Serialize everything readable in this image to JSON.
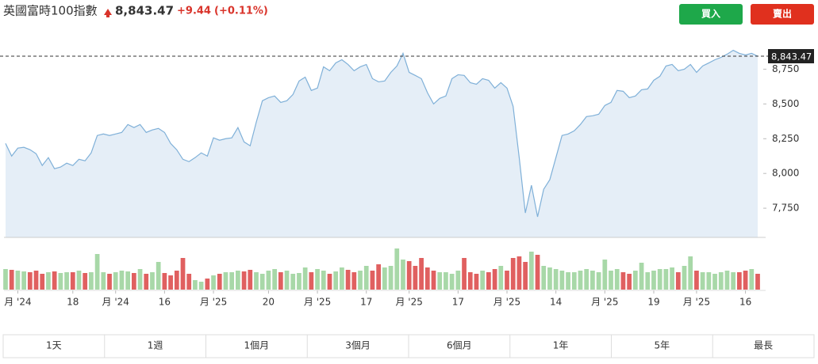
{
  "header": {
    "title": "英國富時100指數",
    "price": "8,843.47",
    "change": "+9.44",
    "change_pct": "(+0.11%)",
    "buy": "買入",
    "sell": "賣出"
  },
  "chart_data": {
    "type": "area",
    "color": "#7fb0d8",
    "fill": "#e5eef7",
    "values": [
      8216,
      8125,
      8182,
      8188,
      8171,
      8142,
      8057,
      8114,
      8034,
      8046,
      8074,
      8057,
      8102,
      8091,
      8148,
      8273,
      8284,
      8273,
      8284,
      8295,
      8352,
      8330,
      8352,
      8295,
      8313,
      8324,
      8295,
      8216,
      8170,
      8102,
      8085,
      8114,
      8148,
      8125,
      8256,
      8239,
      8250,
      8256,
      8330,
      8227,
      8199,
      8369,
      8523,
      8545,
      8557,
      8511,
      8523,
      8568,
      8665,
      8693,
      8597,
      8614,
      8767,
      8739,
      8795,
      8818,
      8784,
      8739,
      8767,
      8784,
      8682,
      8659,
      8665,
      8727,
      8773,
      8864,
      8727,
      8705,
      8682,
      8580,
      8500,
      8540,
      8557,
      8682,
      8710,
      8705,
      8653,
      8642,
      8682,
      8670,
      8614,
      8653,
      8614,
      8483,
      8114,
      7716,
      7915,
      7688,
      7886,
      7955,
      8114,
      8273,
      8284,
      8307,
      8352,
      8409,
      8415,
      8426,
      8489,
      8511,
      8597,
      8591,
      8545,
      8557,
      8602,
      8608,
      8670,
      8699,
      8773,
      8784,
      8739,
      8750,
      8784,
      8727,
      8773,
      8795,
      8818,
      8835,
      8858,
      8886,
      8864,
      8852,
      8864,
      8843.47
    ],
    "volume": [
      26,
      25,
      24,
      23,
      22,
      24,
      20,
      22,
      23,
      21,
      22,
      22,
      24,
      21,
      22,
      45,
      22,
      20,
      22,
      24,
      23,
      21,
      26,
      20,
      22,
      35,
      21,
      18,
      24,
      40,
      20,
      12,
      10,
      14,
      18,
      20,
      22,
      22,
      24,
      23,
      25,
      22,
      20,
      24,
      26,
      22,
      24,
      20,
      21,
      28,
      22,
      26,
      24,
      20,
      23,
      28,
      25,
      22,
      24,
      30,
      24,
      32,
      28,
      30,
      52,
      38,
      36,
      30,
      40,
      28,
      24,
      22,
      22,
      20,
      24,
      40,
      22,
      20,
      24,
      22,
      26,
      30,
      24,
      40,
      42,
      35,
      48,
      44,
      30,
      28,
      26,
      24,
      22,
      22,
      24,
      26,
      24,
      22,
      38,
      24,
      26,
      22,
      20,
      24,
      34,
      22,
      24,
      26,
      26,
      28,
      22,
      30,
      42,
      24,
      22,
      22,
      20,
      22,
      24,
      22,
      22,
      24,
      26,
      20
    ],
    "up_color": "#a8d8a8",
    "down_color": "#e06060",
    "ylim": [
      7540,
      9020
    ],
    "yticks": [
      {
        "value": 7750,
        "label": "7,750"
      },
      {
        "value": 8000,
        "label": "8,000"
      },
      {
        "value": 8250,
        "label": "8,250"
      },
      {
        "value": 8500,
        "label": "8,500"
      },
      {
        "value": 8750,
        "label": "8,750"
      }
    ],
    "current_price": {
      "value": 8843.47,
      "label": "8,843.47"
    },
    "xticks": [
      {
        "value": 2,
        "label": "月 '24"
      },
      {
        "value": 11,
        "label": "18"
      },
      {
        "value": 18,
        "label": "月 '24"
      },
      {
        "value": 26,
        "label": "16"
      },
      {
        "value": 34,
        "label": "月 '25"
      },
      {
        "value": 43,
        "label": "20"
      },
      {
        "value": 51,
        "label": "月 '25"
      },
      {
        "value": 59,
        "label": "17"
      },
      {
        "value": 66,
        "label": "月 '25"
      },
      {
        "value": 74,
        "label": "17"
      },
      {
        "value": 82,
        "label": "月 '25"
      },
      {
        "value": 90,
        "label": "14"
      },
      {
        "value": 98,
        "label": "月 '25"
      },
      {
        "value": 106,
        "label": "19"
      },
      {
        "value": 113,
        "label": "月 '25"
      },
      {
        "value": 121,
        "label": "16"
      }
    ]
  },
  "ranges": [
    "1天",
    "1週",
    "1個月",
    "3個月",
    "6個月",
    "1年",
    "5年",
    "最長"
  ]
}
